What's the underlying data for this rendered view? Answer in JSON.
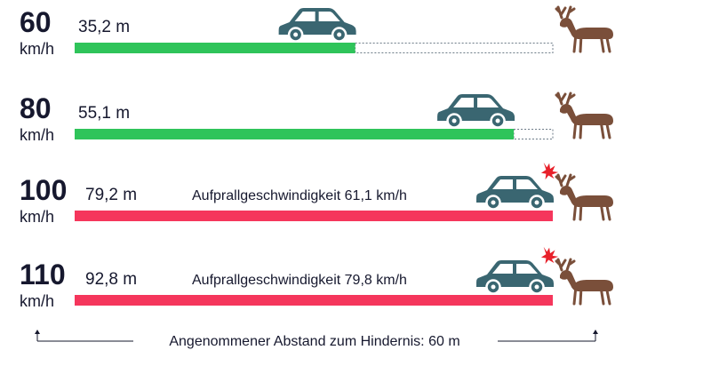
{
  "chart_data": {
    "type": "bar",
    "orientation": "horizontal",
    "x_range_m": [
      0,
      60
    ],
    "bars": [
      {
        "speed": "60",
        "unit": "km/h",
        "distance_m": 35.2,
        "distance_label": "35,2 m",
        "impact_label": "",
        "collision": false
      },
      {
        "speed": "80",
        "unit": "km/h",
        "distance_m": 55.1,
        "distance_label": "55,1 m",
        "impact_label": "",
        "collision": false
      },
      {
        "speed": "100",
        "unit": "km/h",
        "distance_m": 79.2,
        "distance_label": "79,2 m",
        "impact_label": "Aufprallgeschwindigkeit 61,1 km/h",
        "collision": true
      },
      {
        "speed": "110",
        "unit": "km/h",
        "distance_m": 92.8,
        "distance_label": "92,8 m",
        "impact_label": "Aufprallgeschwindigkeit 79,8 km/h",
        "collision": true
      }
    ],
    "footer": "Angenommener Abstand zum Hindernis: 60 m"
  },
  "colors": {
    "safe": "#2fc45a",
    "collision": "#f5365c",
    "car": "#3a6671",
    "deer": "#7a4f3a",
    "impact": "#e8202a",
    "text": "#16182e",
    "dotted": "#6b7a86"
  },
  "icons": {
    "car": "car-icon",
    "deer": "deer-icon",
    "impact": "impact-burst-icon"
  }
}
